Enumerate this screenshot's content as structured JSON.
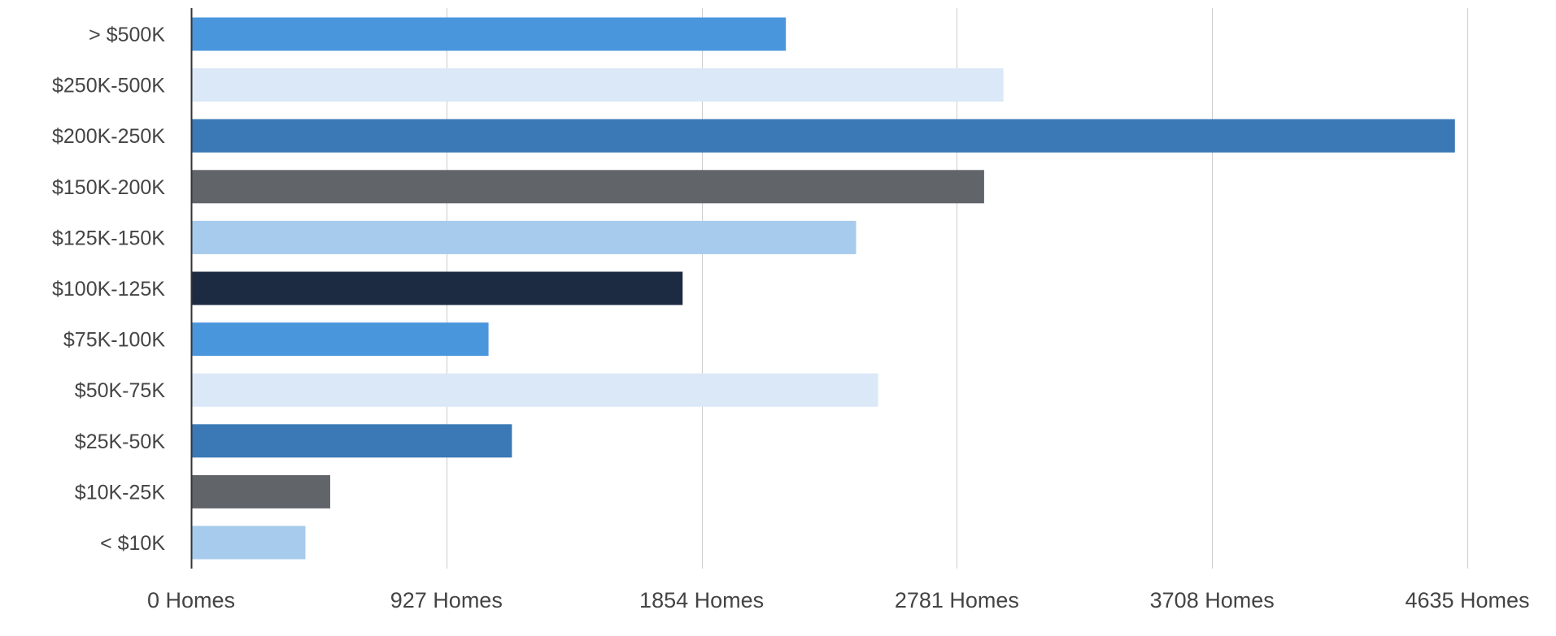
{
  "chart_data": {
    "type": "bar",
    "orientation": "horizontal",
    "title": "",
    "xlabel": "",
    "ylabel": "",
    "categories": [
      "> $500K",
      "$250K-500K",
      "$200K-250K",
      "$150K-200K",
      "$125K-150K",
      "$100K-125K",
      "$75K-100K",
      "$50K-75K",
      "$25K-50K",
      "$10K-25K",
      "< $10K"
    ],
    "values": [
      2160,
      2950,
      4590,
      2880,
      2415,
      1785,
      1080,
      2495,
      1165,
      505,
      415
    ],
    "colors": [
      "#4a96dd",
      "#dae8f7",
      "#3a79b5",
      "#616469",
      "#a6cbec",
      "#1c2b42",
      "#4a96dd",
      "#dae8f7",
      "#3a79b5",
      "#616469",
      "#a6cbec"
    ],
    "xlim": [
      0,
      4635
    ],
    "x_ticks": [
      0,
      927,
      1854,
      2781,
      3708,
      4635
    ],
    "x_tick_labels": [
      "0 Homes",
      "927 Homes",
      "1854 Homes",
      "2781 Homes",
      "3708 Homes",
      "4635 Homes"
    ],
    "grid": true,
    "legend": "none"
  }
}
